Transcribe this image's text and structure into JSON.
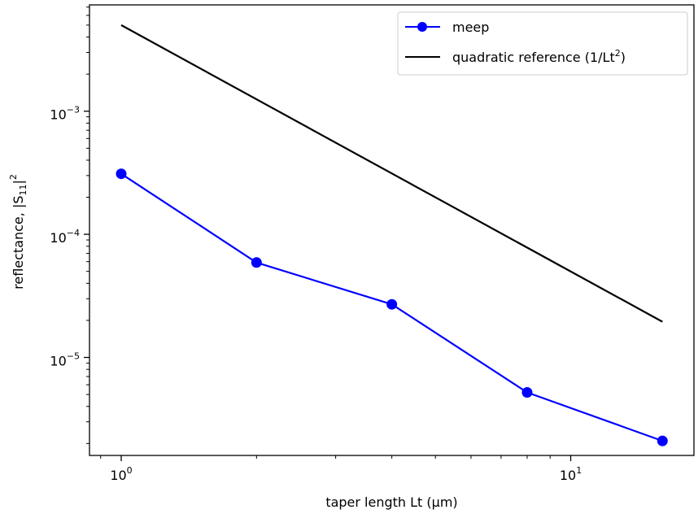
{
  "chart_data": {
    "type": "line",
    "xscale": "log",
    "yscale": "log",
    "xlabel": "taper length Lt (μm)",
    "ylabel_main": "reflectance, |S",
    "ylabel_sub": "11",
    "ylabel_close": "|",
    "ylabel_sup": "2",
    "xlim": [
      0.85,
      18.8
    ],
    "ylim": [
      1.6e-06,
      0.0073
    ],
    "grid": false,
    "legend_position": "top-right",
    "xticks": [
      {
        "value": 1,
        "base": "10",
        "exp": "0"
      },
      {
        "value": 10,
        "base": "10",
        "exp": "1"
      }
    ],
    "yticks": [
      {
        "value": 1e-05,
        "base": "10",
        "exp": "−5"
      },
      {
        "value": 0.0001,
        "base": "10",
        "exp": "−4"
      },
      {
        "value": 0.001,
        "base": "10",
        "exp": "−3"
      }
    ],
    "series": [
      {
        "name": "meep",
        "color": "#0000ff",
        "marker": "circle",
        "x": [
          1,
          2,
          4,
          8,
          16
        ],
        "y": [
          0.00031,
          5.9e-05,
          2.7e-05,
          5.2e-06,
          2.1e-06
        ]
      },
      {
        "name_main": "quadratic reference (1/Lt",
        "name_sup": "2",
        "name_close": ")",
        "color": "#000000",
        "marker": "none",
        "x": [
          1,
          16
        ],
        "y": [
          0.005,
          1.95e-05
        ]
      }
    ]
  }
}
